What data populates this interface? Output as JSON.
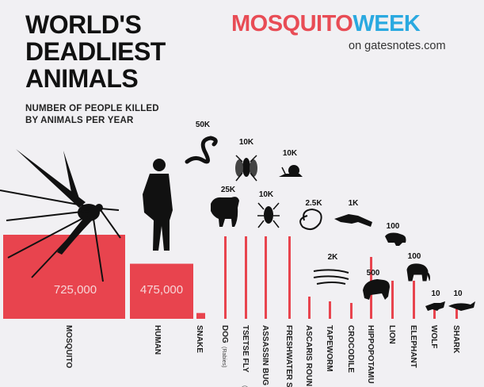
{
  "title": [
    "WORLD'S",
    "DEADLIEST",
    "ANIMALS"
  ],
  "subtitle": [
    "NUMBER OF PEOPLE KILLED",
    "BY ANIMALS PER YEAR"
  ],
  "brand": {
    "part1": "MOSQUITO",
    "part2": "WEEK",
    "source": "on gatesnotes.com"
  },
  "colors": {
    "bar": "#e8444e",
    "silhouette": "#111111",
    "background": "#f1f0f3",
    "brand_red": "#e84c55",
    "brand_blue": "#2aa9e0"
  },
  "chart_data": {
    "type": "bar",
    "title": "WORLD'S DEADLIEST ANIMALS",
    "subtitle": "NUMBER OF PEOPLE KILLED BY ANIMALS PER YEAR",
    "categories": [
      "MOSQUITO",
      "HUMAN",
      "SNAKE",
      "DOG",
      "TSETSE FLY",
      "ASSASSIN BUG",
      "FRESHWATER S",
      "ASCARIS ROUN",
      "TAPEWORM",
      "CROCODILE",
      "HIPPOPOTAMU",
      "LION",
      "ELEPHANT",
      "WOLF",
      "SHARK"
    ],
    "category_notes": [
      "",
      "",
      "",
      "(Rabies)",
      "(Sle",
      "",
      "",
      "",
      "",
      "",
      "",
      "",
      "",
      "",
      ""
    ],
    "values": [
      725000,
      475000,
      50000,
      25000,
      10000,
      10000,
      10000,
      2500,
      2000,
      1000,
      500,
      100,
      100,
      10,
      10
    ],
    "value_labels": [
      "725,000",
      "475,000",
      "50K",
      "25K",
      "10K",
      "10K",
      "10K",
      "2.5K",
      "2K",
      "1K",
      "500",
      "100",
      "100",
      "10",
      "10"
    ],
    "icons": [
      "mosquito-icon",
      "human-icon",
      "snake-icon",
      "dog-icon",
      "tsetse-fly-icon",
      "assassin-bug-icon",
      "snail-icon",
      "roundworm-icon",
      "tapeworm-icon",
      "crocodile-icon",
      "hippopotamus-icon",
      "lion-icon",
      "elephant-icon",
      "wolf-icon",
      "shark-icon"
    ],
    "xlabel": "",
    "ylabel": ""
  }
}
